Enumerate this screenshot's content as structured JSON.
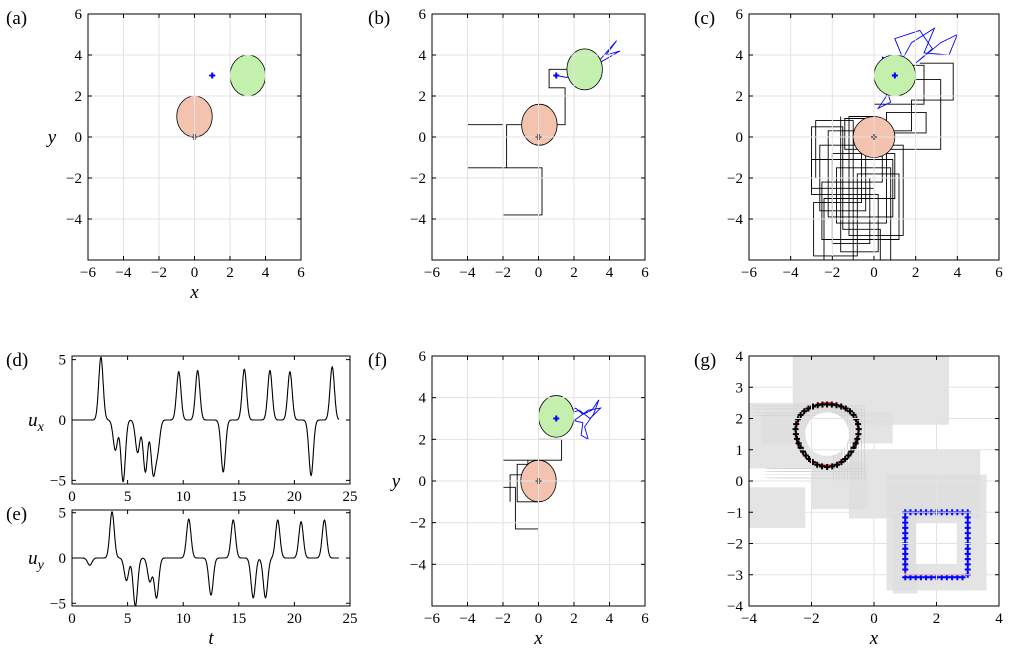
{
  "figure": {
    "panel_labels": [
      "(a)",
      "(b)",
      "(c)",
      "(d)",
      "(e)",
      "(f)",
      "(g)"
    ]
  },
  "chart_data": [
    {
      "id": "a",
      "type": "scatter",
      "xlabel": "x",
      "ylabel": "y",
      "xlim": [
        -6,
        6
      ],
      "ylim": [
        -6,
        6
      ],
      "xticks": [
        -6,
        -4,
        -2,
        0,
        2,
        4,
        6
      ],
      "yticks": [
        -4,
        -2,
        0,
        2,
        4,
        6
      ],
      "grid": true,
      "circles": [
        {
          "cx": 0,
          "cy": 1,
          "r": 1,
          "fill": "#f4c3b0"
        },
        {
          "cx": 3,
          "cy": 3,
          "r": 1,
          "fill": "#c3f0ad"
        }
      ],
      "markers": [
        {
          "x": 0,
          "y": 0,
          "color": "#000000"
        },
        {
          "x": 1,
          "y": 3,
          "color": "#0000ff"
        }
      ],
      "paths": []
    },
    {
      "id": "b",
      "type": "scatter",
      "xlabel": "",
      "ylabel": "",
      "xlim": [
        -6,
        6
      ],
      "ylim": [
        -6,
        6
      ],
      "xticks": [
        -6,
        -4,
        -2,
        0,
        2,
        4,
        6
      ],
      "yticks": [
        -4,
        -2,
        0,
        2,
        4,
        6
      ],
      "grid": true,
      "circles": [
        {
          "cx": 0.05,
          "cy": 0.6,
          "r": 1,
          "fill": "#f4c3b0"
        },
        {
          "cx": 2.6,
          "cy": 3.3,
          "r": 1,
          "fill": "#c3f0ad"
        }
      ],
      "markers": [
        {
          "x": 0,
          "y": 0,
          "color": "#000000"
        },
        {
          "x": 1,
          "y": 3,
          "color": "#0000ff"
        }
      ],
      "paths": [
        {
          "color": "#000000",
          "points": [
            [
              0,
              0
            ],
            [
              0,
              -1.5
            ],
            [
              -4,
              -1.5
            ],
            [
              -4,
              0.6
            ],
            [
              -2,
              0.6
            ],
            [
              -2,
              -3.8
            ],
            [
              0.2,
              -3.8
            ],
            [
              0.2,
              -1.5
            ],
            [
              -1.8,
              -1.5
            ],
            [
              -1.8,
              0.6
            ],
            [
              0.05,
              0.6
            ],
            [
              0.05,
              0.6
            ],
            [
              1.5,
              0.6
            ],
            [
              1.5,
              2.4
            ],
            [
              0.6,
              2.4
            ],
            [
              0.6,
              3.3
            ],
            [
              2.6,
              3.3
            ]
          ]
        },
        {
          "color": "#0000ff",
          "points": [
            [
              1,
              3
            ],
            [
              1.6,
              2.9
            ],
            [
              2.2,
              3.4
            ],
            [
              2.9,
              3.2
            ],
            [
              3.6,
              3.9
            ],
            [
              4.4,
              4.7
            ],
            [
              3.8,
              4.0
            ],
            [
              4.6,
              4.2
            ],
            [
              3.4,
              3.6
            ],
            [
              2.6,
              3.3
            ]
          ]
        }
      ]
    },
    {
      "id": "c",
      "type": "scatter",
      "xlabel": "",
      "ylabel": "",
      "xlim": [
        -6,
        6
      ],
      "ylim": [
        -6,
        6
      ],
      "xticks": [
        -6,
        -4,
        -2,
        0,
        2,
        4,
        6
      ],
      "yticks": [
        -4,
        -2,
        0,
        2,
        4,
        6
      ],
      "grid": true,
      "circles": [
        {
          "cx": 0,
          "cy": 0,
          "r": 1,
          "fill": "#f4c3b0"
        },
        {
          "cx": 1,
          "cy": 3,
          "r": 1,
          "fill": "#c3f0ad"
        }
      ],
      "markers": [
        {
          "x": 0,
          "y": 0,
          "color": "#000000"
        },
        {
          "x": 1,
          "y": 3,
          "color": "#0000ff"
        }
      ],
      "paths": [
        {
          "color": "#000000",
          "points": [
            [
              0,
              0
            ],
            [
              0,
              -2.5
            ],
            [
              -3,
              -2.5
            ],
            [
              -3,
              0.5
            ],
            [
              -1.5,
              0.5
            ],
            [
              -1.5,
              -4.5
            ],
            [
              0.3,
              -4.5
            ],
            [
              0.3,
              -6
            ],
            [
              -2.4,
              -6
            ],
            [
              -2.4,
              -3
            ],
            [
              1,
              -3
            ],
            [
              1,
              -0.8
            ],
            [
              -2,
              -0.8
            ],
            [
              -2,
              -5.2
            ],
            [
              -0.2,
              -5.2
            ],
            [
              -0.2,
              -2
            ],
            [
              -2.8,
              -2
            ],
            [
              -2.8,
              0.8
            ],
            [
              -1,
              0.8
            ],
            [
              -1,
              -6
            ],
            [
              0.8,
              -6
            ],
            [
              0.8,
              -1.5
            ],
            [
              -1.8,
              -1.5
            ],
            [
              -1.8,
              -4.2
            ],
            [
              0.6,
              -4.2
            ],
            [
              0.6,
              1.2
            ],
            [
              2.5,
              1.2
            ],
            [
              2.5,
              0.2
            ],
            [
              -0.4,
              0.2
            ],
            [
              -0.4,
              -3.6
            ],
            [
              -2.6,
              -3.6
            ],
            [
              -2.6,
              -0.4
            ],
            [
              1.4,
              -0.4
            ],
            [
              1.4,
              -4.8
            ],
            [
              -1.2,
              -4.8
            ],
            [
              -1.2,
              1
            ],
            [
              0,
              1
            ],
            [
              0,
              1.6
            ],
            [
              2.4,
              1.6
            ],
            [
              2.4,
              3.5
            ],
            [
              1,
              3.5
            ]
          ]
        },
        {
          "color": "#000000",
          "points": [
            [
              -1.6,
              1
            ],
            [
              -1.6,
              -5.6
            ],
            [
              0.2,
              -5.6
            ],
            [
              0.2,
              -2.8
            ],
            [
              -3,
              -2.8
            ],
            [
              -3,
              -1.1
            ],
            [
              0.9,
              -1.1
            ],
            [
              0.9,
              -3.9
            ],
            [
              -2.2,
              -3.9
            ],
            [
              -2.2,
              0.3
            ],
            [
              1.8,
              0.3
            ],
            [
              1.8,
              1.8
            ],
            [
              3.8,
              1.8
            ],
            [
              3.8,
              3.6
            ],
            [
              2.2,
              3.6
            ]
          ]
        },
        {
          "color": "#000000",
          "points": [
            [
              -0.6,
              0.7
            ],
            [
              -0.6,
              -3.2
            ],
            [
              -2.9,
              -3.2
            ],
            [
              -2.9,
              -5.8
            ],
            [
              -0.8,
              -5.8
            ],
            [
              -0.8,
              -1.8
            ],
            [
              1.2,
              -1.8
            ],
            [
              1.2,
              -5
            ],
            [
              -2.5,
              -5
            ],
            [
              -2.5,
              -2.2
            ],
            [
              0.4,
              -2.2
            ],
            [
              0.4,
              0.9
            ],
            [
              -1.4,
              0.9
            ],
            [
              -1.4,
              -0.6
            ],
            [
              3.2,
              -0.6
            ],
            [
              3.2,
              2.8
            ],
            [
              1.2,
              2.8
            ]
          ]
        },
        {
          "color": "#0000ff",
          "points": [
            [
              1,
              3
            ],
            [
              1.4,
              3.8
            ],
            [
              1.0,
              4.8
            ],
            [
              2.2,
              5.2
            ],
            [
              2.8,
              4.3
            ],
            [
              2.0,
              3.6
            ],
            [
              3.2,
              4.6
            ],
            [
              4.0,
              5.0
            ],
            [
              3.6,
              4.0
            ],
            [
              2.4,
              4.1
            ],
            [
              2.9,
              5.3
            ],
            [
              1.8,
              4.6
            ],
            [
              1.2,
              3.5
            ],
            [
              0.4,
              3.9
            ],
            [
              0.6,
              2.0
            ],
            [
              0.2,
              1.4
            ],
            [
              0.8,
              1.7
            ],
            [
              0.5,
              2.6
            ],
            [
              1,
              3
            ]
          ]
        }
      ]
    },
    {
      "id": "d",
      "type": "line",
      "xlabel": "",
      "ylabel": "u_x",
      "xlim": [
        0,
        25
      ],
      "ylim": [
        -5.3,
        5.3
      ],
      "xticks": [
        0,
        5,
        10,
        15,
        20,
        25
      ],
      "yticks": [
        -5,
        0,
        5
      ],
      "grid": false,
      "series": [
        {
          "pulses": [
            [
              2.6,
              5.2
            ],
            [
              3.9,
              -2.5
            ],
            [
              4.6,
              -5.1
            ],
            [
              5.9,
              -2.7
            ],
            [
              6.6,
              -4.3
            ],
            [
              7.3,
              -4.3
            ],
            [
              7.7,
              -2.4
            ],
            [
              9.6,
              4.0
            ],
            [
              11.3,
              4.1
            ],
            [
              13.6,
              -4.3
            ],
            [
              15.5,
              4.2
            ],
            [
              17.8,
              4.1
            ],
            [
              19.6,
              4.0
            ],
            [
              21.5,
              -4.6
            ],
            [
              23.4,
              4.4
            ]
          ]
        }
      ]
    },
    {
      "id": "e",
      "type": "line",
      "xlabel": "t",
      "ylabel": "u_y",
      "xlim": [
        0,
        25
      ],
      "ylim": [
        -5.3,
        5.3
      ],
      "xticks": [
        0,
        5,
        10,
        15,
        20,
        25
      ],
      "yticks": [
        -5,
        0,
        5
      ],
      "grid": false,
      "series": [
        {
          "pulses": [
            [
              1.6,
              -0.8
            ],
            [
              3.6,
              5.1
            ],
            [
              4.9,
              -2.5
            ],
            [
              5.7,
              -5.3
            ],
            [
              7.0,
              -2.6
            ],
            [
              7.6,
              -4.4
            ],
            [
              10.5,
              4.3
            ],
            [
              12.5,
              -4.1
            ],
            [
              14.5,
              4.2
            ],
            [
              16.3,
              -4.4
            ],
            [
              17.4,
              -4.4
            ],
            [
              18.5,
              4.2
            ],
            [
              20.6,
              4.0
            ],
            [
              22.7,
              4.2
            ]
          ]
        }
      ]
    },
    {
      "id": "f",
      "type": "scatter",
      "xlabel": "x",
      "ylabel": "y",
      "xlim": [
        -6,
        6
      ],
      "ylim": [
        -6,
        6
      ],
      "xticks": [
        -6,
        -4,
        -2,
        0,
        2,
        4,
        6
      ],
      "yticks": [
        -4,
        -2,
        0,
        2,
        4,
        6
      ],
      "grid": true,
      "circles": [
        {
          "cx": 0,
          "cy": 0,
          "r": 1,
          "fill": "#f4c3b0"
        },
        {
          "cx": 1,
          "cy": 3.1,
          "r": 1,
          "fill": "#c3f0ad"
        }
      ],
      "markers": [
        {
          "x": 0,
          "y": 0,
          "color": "#000000"
        },
        {
          "x": 1,
          "y": 3,
          "color": "#0000ff"
        }
      ],
      "paths": [
        {
          "color": "#000000",
          "points": [
            [
              0,
              0
            ],
            [
              0,
              -1.0
            ],
            [
              -1.2,
              -1.0
            ],
            [
              -1.2,
              0.8
            ],
            [
              0,
              0.8
            ],
            [
              0,
              -2.3
            ],
            [
              -1.3,
              -2.3
            ],
            [
              -1.3,
              -0.3
            ],
            [
              -2.0,
              -0.3
            ],
            [
              -2.0,
              1.0
            ],
            [
              0,
              1.0
            ],
            [
              1.3,
              1.0
            ],
            [
              1.3,
              2.0
            ],
            [
              0,
              2.0
            ],
            [
              0,
              1.0
            ],
            [
              -0.6,
              1.0
            ],
            [
              -0.6,
              0.3
            ],
            [
              -1.6,
              0.3
            ],
            [
              -1.6,
              -1.0
            ]
          ]
        },
        {
          "color": "#0000ff",
          "points": [
            [
              1,
              3
            ],
            [
              1.6,
              3.3
            ],
            [
              2.1,
              3.5
            ],
            [
              2.5,
              3.2
            ],
            [
              3.0,
              3.4
            ],
            [
              3.4,
              3.9
            ],
            [
              3.1,
              3.2
            ],
            [
              2.6,
              2.6
            ],
            [
              2.8,
              2.0
            ],
            [
              2.4,
              2.2
            ],
            [
              2.5,
              2.8
            ],
            [
              2.0,
              2.9
            ],
            [
              2.8,
              3.4
            ],
            [
              3.5,
              3.5
            ],
            [
              2.9,
              3.0
            ],
            [
              2.3,
              3.4
            ],
            [
              1.6,
              3.2
            ]
          ]
        }
      ]
    },
    {
      "id": "g",
      "type": "line",
      "xlabel": "x",
      "ylabel": "",
      "xlim": [
        -4,
        4
      ],
      "ylim": [
        -4,
        4
      ],
      "xticks": [
        -4,
        -2,
        0,
        2,
        4
      ],
      "yticks": [
        -4,
        -3,
        -2,
        -1,
        0,
        1,
        2,
        3,
        4
      ],
      "grid": true,
      "bands_color": "#dcdcdc",
      "circle_target": {
        "cx": -1.5,
        "cy": 1.5,
        "r": 1,
        "target_color": "#ff0000",
        "marker_color": "#000000"
      },
      "square_target": {
        "x0": 1,
        "y0": -3,
        "x1": 3,
        "y1": -1,
        "target_color": "#ff0000",
        "marker_color": "#0000ff"
      }
    }
  ]
}
